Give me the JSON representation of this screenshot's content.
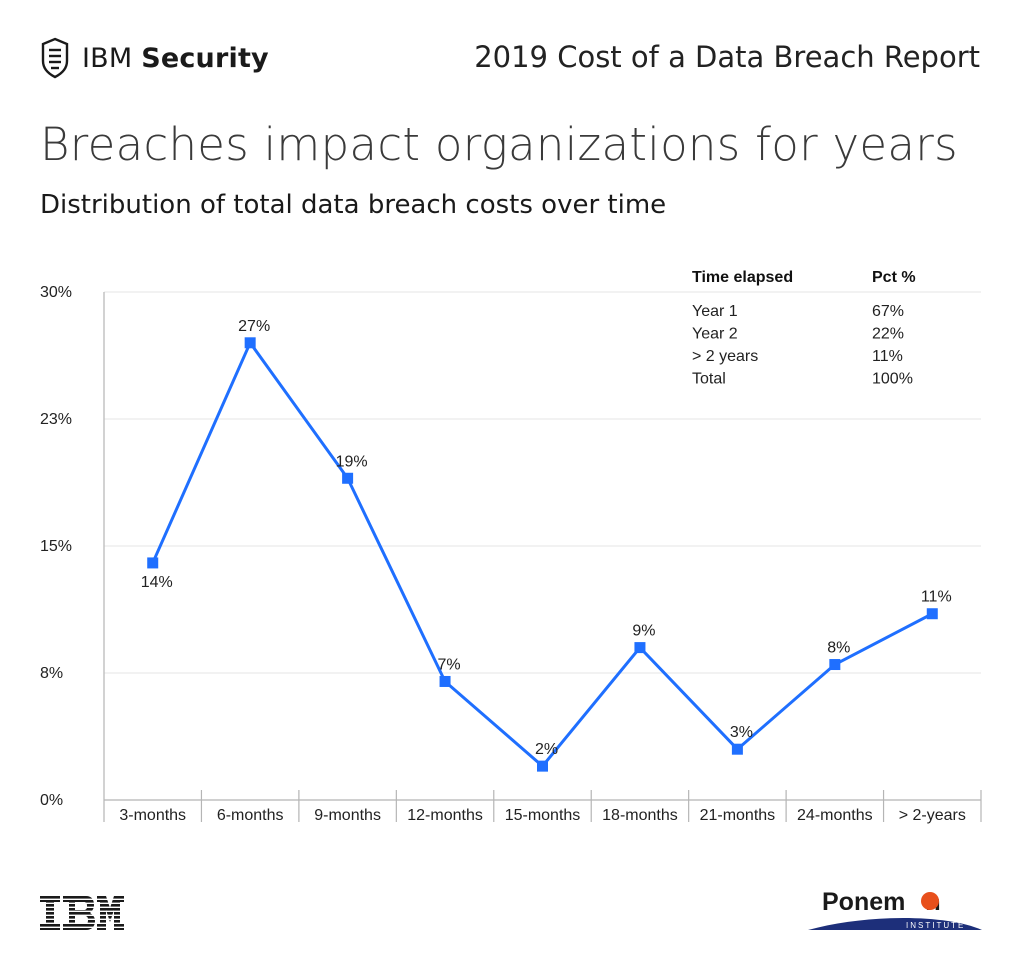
{
  "header": {
    "brand_light": "IBM",
    "brand_bold": "Security",
    "report_title": "2019 Cost of a Data Breach Report"
  },
  "title": "Breaches impact organizations for years",
  "subtitle": "Distribution of total data breach costs over time",
  "chart_data": {
    "type": "line",
    "categories": [
      "3-months",
      "6-months",
      "9-months",
      "12-months",
      "15-months",
      "18-months",
      "21-months",
      "24-months",
      "> 2-years"
    ],
    "values": [
      14,
      27,
      19,
      7,
      2,
      9,
      3,
      8,
      11
    ],
    "data_labels": [
      "14%",
      "27%",
      "19%",
      "7%",
      "2%",
      "9%",
      "3%",
      "8%",
      "11%"
    ],
    "y_ticks": [
      0,
      7.5,
      15,
      22.5,
      30
    ],
    "y_tick_labels": [
      "0%",
      "8%",
      "15%",
      "23%",
      "30%"
    ],
    "ylim": [
      0,
      30
    ],
    "grid": true,
    "color": "#1f6fff",
    "marker": "square",
    "title": "",
    "xlabel": "",
    "ylabel": ""
  },
  "table": {
    "headers": [
      "Time elapsed",
      "Pct %"
    ],
    "rows": [
      [
        "Year 1",
        "67%"
      ],
      [
        "Year 2",
        "22%"
      ],
      [
        "> 2 years",
        "11%"
      ],
      [
        "Total",
        "100%"
      ]
    ]
  },
  "footer": {
    "ibm_logo": "IBM",
    "ponemon_pre": "Ponem",
    "ponemon_post": "n",
    "ponemon_sub": "INSTITUTE"
  },
  "colors": {
    "line": "#1f6fff",
    "grid": "#e6e6e6",
    "axis": "#b5b5b5",
    "ponemon_orange": "#e8501c",
    "ponemon_navy": "#1d2f7a"
  },
  "icons": [
    "ibm-security-shield-icon",
    "ibm-logo",
    "ponemon-logo"
  ]
}
